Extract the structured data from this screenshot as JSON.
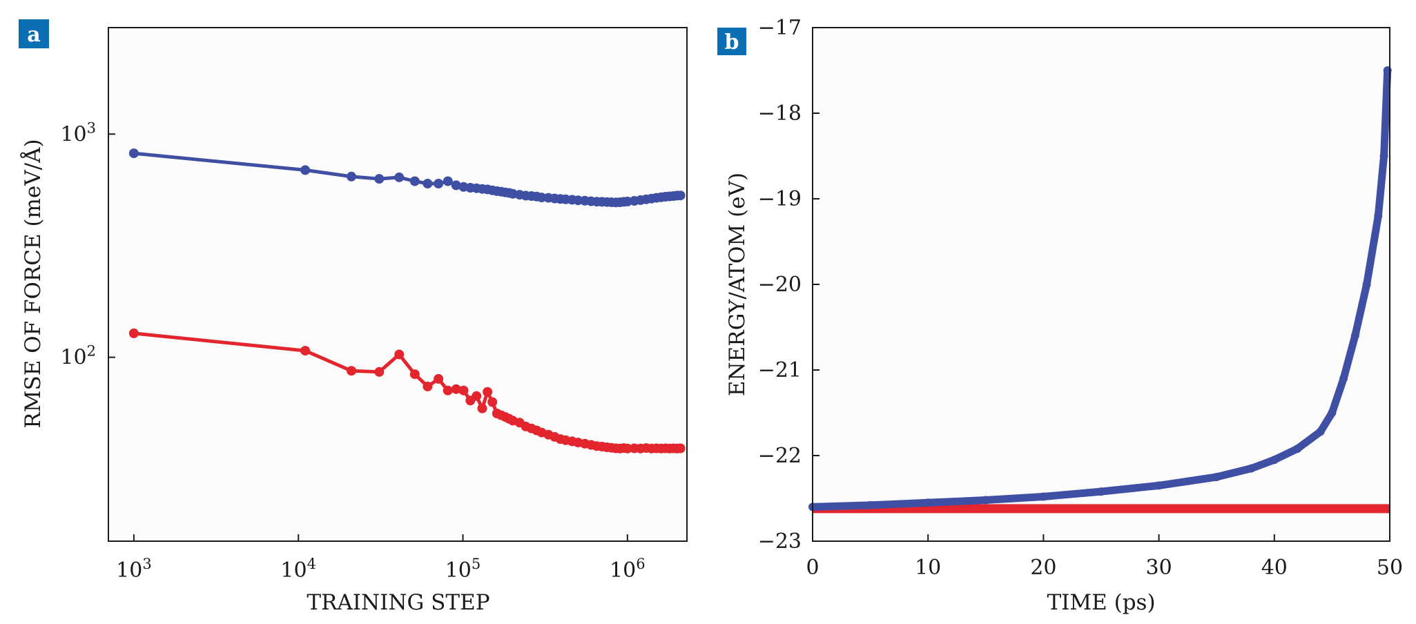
{
  "colors": {
    "blue": "#3f4fa3",
    "red": "#e3262e",
    "tag_bg": "#0a6eb5"
  },
  "chart_data": [
    {
      "panel_label": "a",
      "type": "line",
      "xscale": "log",
      "yscale": "log",
      "xlabel": "TRAINING STEP",
      "ylabel": "RMSE OF FORCE (meV/Å)",
      "xlim": [
        700,
        2300000
      ],
      "ylim": [
        15,
        3000
      ],
      "xticks": [
        {
          "value": 1000,
          "base": "10",
          "exp": "3"
        },
        {
          "value": 10000,
          "base": "10",
          "exp": "4"
        },
        {
          "value": 100000,
          "base": "10",
          "exp": "5"
        },
        {
          "value": 1000000,
          "base": "10",
          "exp": "6"
        }
      ],
      "yticks": [
        {
          "value": 100,
          "base": "10",
          "exp": "2"
        },
        {
          "value": 1000,
          "base": "10",
          "exp": "3"
        }
      ],
      "series": [
        {
          "name": "upper curve (blue)",
          "color": "#3f4fa3",
          "x": [
            1000,
            11000,
            21000,
            31000,
            41000,
            51000,
            61000,
            71000,
            81000,
            91000,
            101000,
            111000,
            121000,
            131000,
            141000,
            151000,
            161000,
            171000,
            181000,
            191000,
            201000,
            221000,
            241000,
            261000,
            281000,
            301000,
            331000,
            361000,
            391000,
            421000,
            461000,
            501000,
            551000,
            601000,
            651000,
            701000,
            751000,
            801000,
            851000,
            901000,
            951000,
            1001000,
            1101000,
            1201000,
            1301000,
            1401000,
            1501000,
            1601000,
            1701000,
            1801000,
            1901000,
            2001000,
            2101000
          ],
          "values": [
            820,
            690,
            645,
            630,
            640,
            615,
            600,
            600,
            615,
            590,
            580,
            575,
            572,
            568,
            565,
            560,
            555,
            552,
            548,
            545,
            540,
            535,
            530,
            528,
            525,
            520,
            518,
            515,
            512,
            510,
            508,
            505,
            503,
            500,
            498,
            497,
            496,
            495,
            494,
            495,
            497,
            499,
            502,
            506,
            510,
            514,
            518,
            521,
            524,
            526,
            528,
            530,
            531
          ]
        },
        {
          "name": "lower curve (red)",
          "color": "#e3262e",
          "x": [
            1000,
            11000,
            21000,
            31000,
            41000,
            51000,
            61000,
            71000,
            81000,
            91000,
            101000,
            111000,
            121000,
            131000,
            141000,
            151000,
            161000,
            171000,
            181000,
            191000,
            201000,
            221000,
            241000,
            261000,
            281000,
            301000,
            331000,
            361000,
            391000,
            421000,
            461000,
            501000,
            551000,
            601000,
            651000,
            701000,
            751000,
            801000,
            851000,
            901000,
            951000,
            1001000,
            1101000,
            1201000,
            1301000,
            1401000,
            1501000,
            1601000,
            1701000,
            1801000,
            1901000,
            2001000,
            2101000
          ],
          "values": [
            128,
            107,
            87,
            86,
            103,
            84,
            74,
            80,
            71,
            72,
            71,
            64,
            67,
            59,
            70,
            63,
            56,
            55,
            54,
            53,
            52,
            51,
            49,
            48,
            47,
            46,
            45,
            44,
            43,
            42.5,
            42,
            41.5,
            41,
            40.5,
            40,
            39.8,
            39.5,
            39.3,
            39.1,
            39,
            39.2,
            39,
            39.1,
            39,
            39.2,
            39,
            39.1,
            39,
            39.1,
            39,
            39.1,
            39,
            39.1
          ]
        }
      ]
    },
    {
      "panel_label": "b",
      "type": "scatter",
      "xlabel": "TIME (ps)",
      "ylabel": "ENERGY/ATOM (eV)",
      "xlim": [
        0,
        50
      ],
      "ylim": [
        -23,
        -17
      ],
      "xticks": [
        0,
        10,
        20,
        30,
        40,
        50
      ],
      "yticks": [
        -23,
        -22,
        -21,
        -20,
        -19,
        -18,
        -17
      ],
      "ytick_labels": [
        "−23",
        "−22",
        "−21",
        "−20",
        "−19",
        "−18",
        "−17"
      ],
      "series": [
        {
          "name": "energy (blue)",
          "color": "#3f4fa3",
          "x": [
            0,
            5,
            10,
            15,
            20,
            25,
            30,
            35,
            38,
            40,
            42,
            44,
            45,
            46,
            47,
            48,
            49,
            49.5,
            49.8
          ],
          "values": [
            -22.6,
            -22.58,
            -22.55,
            -22.52,
            -22.48,
            -22.42,
            -22.35,
            -22.25,
            -22.15,
            -22.05,
            -21.92,
            -21.72,
            -21.5,
            -21.1,
            -20.6,
            -20.0,
            -19.2,
            -18.5,
            -17.5
          ]
        },
        {
          "name": "reference (red)",
          "color": "#e3262e",
          "x": [
            0,
            50
          ],
          "values": [
            -22.62,
            -22.62
          ]
        }
      ]
    }
  ]
}
